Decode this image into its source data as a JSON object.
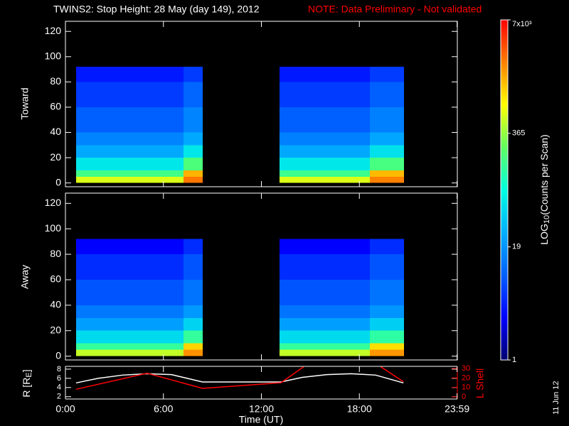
{
  "chart_data": [
    {
      "type": "heatmap",
      "title": "TWINS2: Stop Height: 28 May (day 149), 2012",
      "note": "NOTE: Data Preliminary - Not validated",
      "note_color": "#ff0000",
      "ylabel": "Toward",
      "xlim": [
        0,
        24
      ],
      "ylim": [
        -3,
        128
      ],
      "yticks": [
        0,
        20,
        40,
        60,
        80,
        100,
        120
      ],
      "x_ranges": [
        [
          0.65,
          7.23
        ],
        [
          7.23,
          8.4
        ],
        [
          13.1,
          18.64
        ],
        [
          18.64,
          20.73
        ]
      ],
      "y_edges": [
        0,
        5,
        10,
        20,
        30,
        40,
        60,
        80,
        92
      ],
      "values": [
        [
          600,
          2500,
          600,
          2300
        ],
        [
          180,
          1500,
          170,
          1400
        ],
        [
          60,
          200,
          60,
          190
        ],
        [
          25,
          60,
          25,
          55
        ],
        [
          15,
          25,
          14,
          24
        ],
        [
          9,
          15,
          9,
          14
        ],
        [
          6,
          10,
          6,
          9
        ],
        [
          4,
          6,
          4,
          6
        ]
      ]
    },
    {
      "type": "heatmap",
      "ylabel": "Away",
      "xlim": [
        0,
        24
      ],
      "ylim": [
        -3,
        128
      ],
      "yticks": [
        0,
        20,
        40,
        60,
        80,
        100,
        120
      ],
      "x_ranges": [
        [
          0.65,
          7.23
        ],
        [
          7.23,
          8.4
        ],
        [
          13.1,
          18.64
        ],
        [
          18.64,
          20.73
        ]
      ],
      "y_edges": [
        0,
        5,
        10,
        20,
        30,
        40,
        60,
        80,
        92
      ],
      "values": [
        [
          500,
          2000,
          500,
          1900
        ],
        [
          150,
          1100,
          150,
          1000
        ],
        [
          50,
          150,
          50,
          140
        ],
        [
          22,
          45,
          22,
          42
        ],
        [
          13,
          20,
          12,
          19
        ],
        [
          8,
          12,
          8,
          12
        ],
        [
          5,
          8,
          5,
          8
        ],
        [
          3,
          5,
          3,
          5
        ]
      ]
    },
    {
      "type": "line",
      "xlim": [
        0,
        24
      ],
      "xticks": [
        {
          "value": 0,
          "label": "0:00"
        },
        {
          "value": 6,
          "label": "6:00"
        },
        {
          "value": 12,
          "label": "12:00"
        },
        {
          "value": 18,
          "label": "18:00"
        },
        {
          "value": 23.983,
          "label": "23:59"
        }
      ],
      "xlabel": "Time (UT)",
      "ylabel": "R [R",
      "ylabel_sub": "E",
      "ylabel_end": "]",
      "ylim": [
        1.5,
        8.6
      ],
      "yticks": [
        2,
        4,
        6,
        8
      ],
      "y2label": "L Shell",
      "y2lim": [
        -2.3,
        32.3
      ],
      "y2ticks": [
        0,
        10,
        20,
        30
      ],
      "y2color": "#ff0000",
      "annotation": "11 Jun 12",
      "series": [
        {
          "color": "#ffffff",
          "x": [
            0.65,
            2,
            3.5,
            5,
            6.5,
            8.4,
            13.2,
            14.5,
            16,
            17.5,
            19,
            20.7
          ],
          "values": [
            5.0,
            6.0,
            6.7,
            7.0,
            6.8,
            5.2,
            5.2,
            6.2,
            6.8,
            7.0,
            6.7,
            5.0
          ]
        },
        {
          "color": "#ff0000",
          "axis": "y2",
          "x": [
            0.65,
            5,
            8.4,
            13.2,
            14.6,
            17,
            19.3,
            20.7
          ],
          "values": [
            8,
            25,
            9,
            15,
            32,
            null,
            32,
            16
          ]
        }
      ]
    },
    {
      "type": "colorbar",
      "label": "LOG",
      "label_sub": "10",
      "label_end": "(Counts per Scan)",
      "log": true,
      "ylim": [
        1,
        7000
      ],
      "yticks": [
        1,
        19,
        365,
        {
          "value": 7000,
          "label": "7x10³"
        }
      ],
      "colormap": [
        "#000070",
        "#0000ff",
        "#0060ff",
        "#00b0ff",
        "#00ffe0",
        "#60ff60",
        "#ffff00",
        "#ff8000",
        "#ff0000"
      ]
    }
  ]
}
